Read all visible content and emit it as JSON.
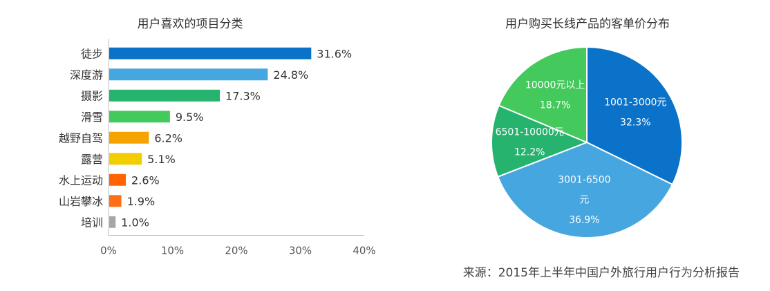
{
  "chart_data": [
    {
      "type": "bar",
      "orientation": "horizontal",
      "title": "用户喜欢的项目分类",
      "categories": [
        "徒步",
        "深度游",
        "摄影",
        "滑雪",
        "越野自驾",
        "露营",
        "水上运动",
        "山岩攀冰",
        "培训"
      ],
      "values": [
        31.6,
        24.8,
        17.3,
        9.5,
        6.2,
        5.1,
        2.6,
        1.9,
        1.0
      ],
      "value_labels": [
        "31.6%",
        "24.8%",
        "17.3%",
        "9.5%",
        "6.2%",
        "5.1%",
        "2.6%",
        "1.9%",
        "1.0%"
      ],
      "colors": [
        "#0a72c8",
        "#46a6e0",
        "#26b36e",
        "#43c95c",
        "#f5a300",
        "#f2cd00",
        "#ff6400",
        "#ff6f17",
        "#a6a6a6"
      ],
      "xlim": [
        0,
        40
      ],
      "xticks": [
        "0%",
        "10%",
        "20%",
        "30%",
        "40%"
      ],
      "grid": false
    },
    {
      "type": "pie",
      "title": "用户购买长线产品的客单价分布",
      "slices": [
        {
          "label_lines": [
            "1001-3000元"
          ],
          "value": 32.3,
          "value_label": "32.3%",
          "color": "#0a72c8"
        },
        {
          "label_lines": [
            "3001-6500",
            "元"
          ],
          "value": 36.9,
          "value_label": "36.9%",
          "color": "#46a6e0"
        },
        {
          "label_lines": [
            "6501-10000元"
          ],
          "value": 12.2,
          "value_label": "12.2%",
          "color": "#26b36e"
        },
        {
          "label_lines": [
            "10000元以上"
          ],
          "value": 18.7,
          "value_label": "18.7%",
          "color": "#43c95c"
        }
      ]
    }
  ],
  "source_note": "来源：2015年上半年中国户外旅行用户行为分析报告"
}
